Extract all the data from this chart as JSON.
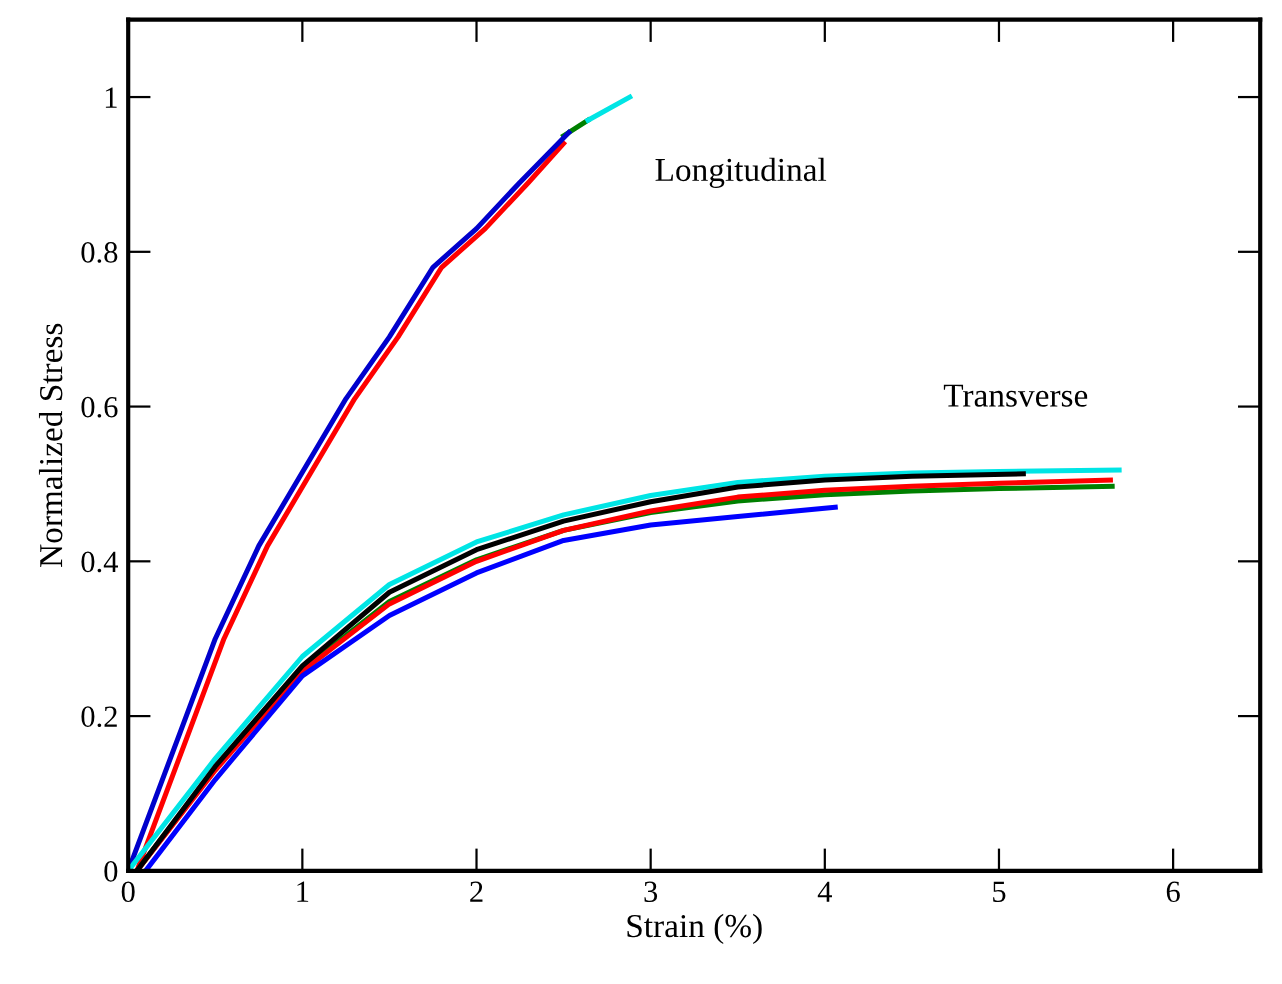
{
  "chart_data": {
    "type": "line",
    "xlabel": "Strain (%)",
    "ylabel": "Normalized Stress",
    "xlim": [
      0,
      6.5
    ],
    "xticks": [
      0,
      1,
      2,
      3,
      4,
      5,
      6
    ],
    "ylim": [
      0,
      1.1
    ],
    "yticks": [
      0,
      0.2,
      0.4,
      0.6,
      0.8,
      1
    ],
    "grid": false,
    "marker": "none",
    "line_style": "solid",
    "series": [
      {
        "color": "#008000",
        "x": [
          2.5,
          2.64
        ],
        "values": [
          0.95,
          0.97
        ]
      },
      {
        "color": "#00e5e5",
        "x": [
          2.64,
          2.88
        ],
        "values": [
          0.97,
          1.0
        ]
      },
      {
        "color": "#ff0000",
        "x": [
          0.05,
          0.35,
          0.55,
          0.8,
          1.05,
          1.3,
          1.55,
          1.8,
          2.05,
          2.3,
          2.5
        ],
        "values": [
          0,
          0.18,
          0.3,
          0.42,
          0.515,
          0.61,
          0.69,
          0.78,
          0.83,
          0.89,
          0.94
        ]
      },
      {
        "color": "#0000cc",
        "x": [
          0,
          0.3,
          0.5,
          0.75,
          1,
          1.25,
          1.5,
          1.75,
          2,
          2.25,
          2.53
        ],
        "values": [
          0,
          0.18,
          0.3,
          0.42,
          0.515,
          0.61,
          0.69,
          0.78,
          0.83,
          0.89,
          0.954
        ]
      },
      {
        "color": "#00e5e5",
        "x": [
          0,
          0.5,
          1,
          1.5,
          2,
          2.5,
          3,
          3.5,
          4,
          4.5,
          5,
          5.69
        ],
        "values": [
          0,
          0.145,
          0.277,
          0.37,
          0.425,
          0.46,
          0.485,
          0.502,
          0.51,
          0.514,
          0.516,
          0.518
        ]
      },
      {
        "color": "#008000",
        "x": [
          0.05,
          0.5,
          1,
          1.5,
          2,
          2.5,
          3,
          3.5,
          4,
          4.5,
          5,
          5.65
        ],
        "values": [
          0,
          0.132,
          0.26,
          0.348,
          0.402,
          0.44,
          0.463,
          0.478,
          0.486,
          0.491,
          0.494,
          0.497
        ]
      },
      {
        "color": "#ff0000",
        "x": [
          0.05,
          0.5,
          1,
          1.5,
          2,
          2.5,
          3,
          3.5,
          4,
          4.5,
          5,
          5.64
        ],
        "values": [
          0,
          0.13,
          0.258,
          0.345,
          0.4,
          0.44,
          0.465,
          0.483,
          0.492,
          0.497,
          0.501,
          0.505
        ]
      },
      {
        "color": "#0000ff",
        "x": [
          0.1,
          0.5,
          1,
          1.5,
          2,
          2.5,
          3,
          3.5,
          4.06
        ],
        "values": [
          0,
          0.118,
          0.252,
          0.33,
          0.385,
          0.427,
          0.447,
          0.458,
          0.47
        ]
      },
      {
        "color": "#000000",
        "x": [
          0.05,
          0.5,
          1,
          1.5,
          2,
          2.5,
          3,
          3.5,
          4,
          4.5,
          5.14
        ],
        "values": [
          0,
          0.135,
          0.265,
          0.36,
          0.415,
          0.452,
          0.477,
          0.496,
          0.505,
          0.51,
          0.513
        ]
      }
    ],
    "annotations": [
      "Longitudinal",
      "Transverse"
    ]
  }
}
